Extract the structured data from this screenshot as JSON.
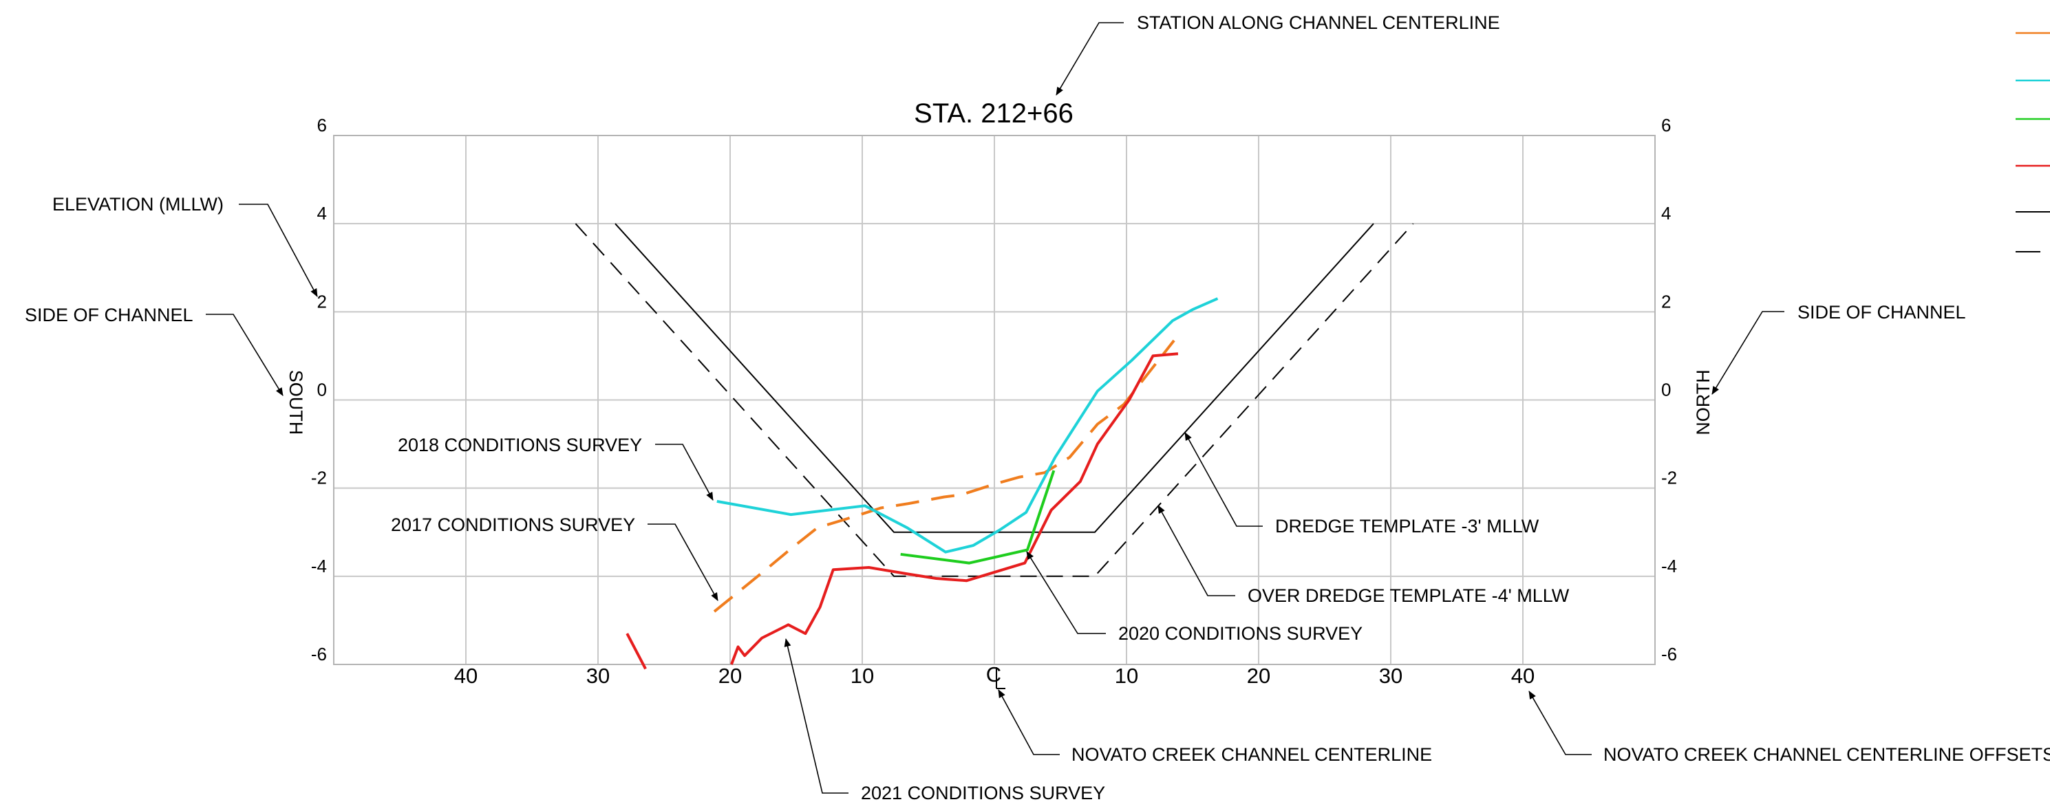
{
  "chart_data": {
    "type": "line",
    "title": "STA. 212+66",
    "ylabel": "ELEVATION (MLLW)",
    "left_side_label": "SOUTH",
    "right_side_label": "NORTH",
    "centerline_symbol": "C",
    "ylim": [
      -6,
      6
    ],
    "xlim": [
      -50,
      50
    ],
    "y_ticks": [
      "6",
      "4",
      "2",
      "0",
      "-2",
      "-4",
      "-6"
    ],
    "x_ticks": [
      {
        "x": -40,
        "label": "40"
      },
      {
        "x": -30,
        "label": "30"
      },
      {
        "x": -20,
        "label": "20"
      },
      {
        "x": -10,
        "label": "10"
      },
      {
        "x": 10,
        "label": "10"
      },
      {
        "x": 20,
        "label": "20"
      },
      {
        "x": 30,
        "label": "30"
      },
      {
        "x": 40,
        "label": "40"
      }
    ],
    "grid": true,
    "series": [
      {
        "key": "dredge",
        "color": "#000000",
        "dash": "none",
        "x": [
          -28.7,
          -7.6,
          7.6,
          28.7
        ],
        "y": [
          4.0,
          -3.0,
          -3.0,
          4.0
        ]
      },
      {
        "key": "over_dredge",
        "color": "#000000",
        "dash": "long",
        "x": [
          -31.7,
          -7.6,
          7.6,
          31.7
        ],
        "y": [
          4.0,
          -4.0,
          -4.0,
          4.0
        ]
      },
      {
        "key": "survey_2017",
        "color": "#f07d1e",
        "dash": "dashed",
        "x": [
          -21.2,
          -17.5,
          -15.5,
          -13.4,
          -11.2,
          -8.6,
          -6.5,
          -3.8,
          -2.5,
          0.1,
          1.9,
          3.8,
          5.7,
          7.8,
          9.8,
          11.5,
          13.6
        ],
        "y": [
          -4.8,
          -3.9,
          -3.4,
          -2.9,
          -2.7,
          -2.45,
          -2.35,
          -2.2,
          -2.15,
          -1.9,
          -1.75,
          -1.65,
          -1.3,
          -0.55,
          -0.1,
          0.55,
          1.35
        ]
      },
      {
        "key": "survey_2018",
        "color": "#1ed2d8",
        "dash": "none",
        "x": [
          -21.0,
          -15.4,
          -9.8,
          -6.6,
          -3.7,
          -1.6,
          0.4,
          2.4,
          4.6,
          7.8,
          10.4,
          13.5,
          15.0,
          16.9
        ],
        "y": [
          -2.3,
          -2.6,
          -2.4,
          -2.9,
          -3.45,
          -3.3,
          -2.95,
          -2.55,
          -1.3,
          0.2,
          0.9,
          1.8,
          2.05,
          2.3
        ]
      },
      {
        "key": "survey_2020",
        "color": "#1ecd1e",
        "dash": "none",
        "x": [
          -7.1,
          -1.9,
          2.5,
          4.5
        ],
        "y": [
          -3.5,
          -3.7,
          -3.4,
          -1.6
        ]
      },
      {
        "key": "survey_2021",
        "color": "#e61e1e",
        "dash": "none",
        "segments": [
          {
            "x": [
              -27.8,
              -26.4
            ],
            "y": [
              -5.3,
              -6.1
            ]
          },
          {
            "x": [
              -19.9,
              -19.4,
              -18.9,
              -17.6,
              -15.6,
              -14.3,
              -13.2,
              -12.2,
              -9.5,
              -6.5,
              -4.4,
              -2.1,
              2.3,
              4.3,
              6.5,
              7.8,
              10.2,
              12.0,
              13.9
            ],
            "y": [
              -6.0,
              -5.6,
              -5.8,
              -5.4,
              -5.1,
              -5.3,
              -4.7,
              -3.85,
              -3.8,
              -3.95,
              -4.05,
              -4.1,
              -3.7,
              -2.5,
              -1.85,
              -1.0,
              0.0,
              1.0,
              1.05
            ]
          }
        ]
      }
    ]
  },
  "legend_swatches": [
    {
      "color": "#f07d1e",
      "dash": "none"
    },
    {
      "color": "#1ed2d8",
      "dash": "none"
    },
    {
      "color": "#1ecd1e",
      "dash": "none"
    },
    {
      "color": "#e61e1e",
      "dash": "none"
    },
    {
      "color": "#000000",
      "dash": "none"
    },
    {
      "color": "#000000",
      "dash": "short"
    }
  ],
  "annotations": {
    "station": "STATION ALONG CHANNEL CENTERLINE",
    "elevation": "ELEVATION (MLLW)",
    "side_left": "SIDE OF CHANNEL",
    "side_right": "SIDE OF CHANNEL",
    "survey_2018": "2018 CONDITIONS SURVEY",
    "survey_2017": "2017 CONDITIONS SURVEY",
    "survey_2020": "2020 CONDITIONS SURVEY",
    "survey_2021": "2021 CONDITIONS SURVEY",
    "dredge": "DREDGE TEMPLATE -3' MLLW",
    "over_dredge": "OVER DREDGE TEMPLATE -4' MLLW",
    "centerline": "NOVATO CREEK CHANNEL CENTERLINE",
    "offsets": "NOVATO CREEK CHANNEL CENTERLINE OFFSETS"
  }
}
